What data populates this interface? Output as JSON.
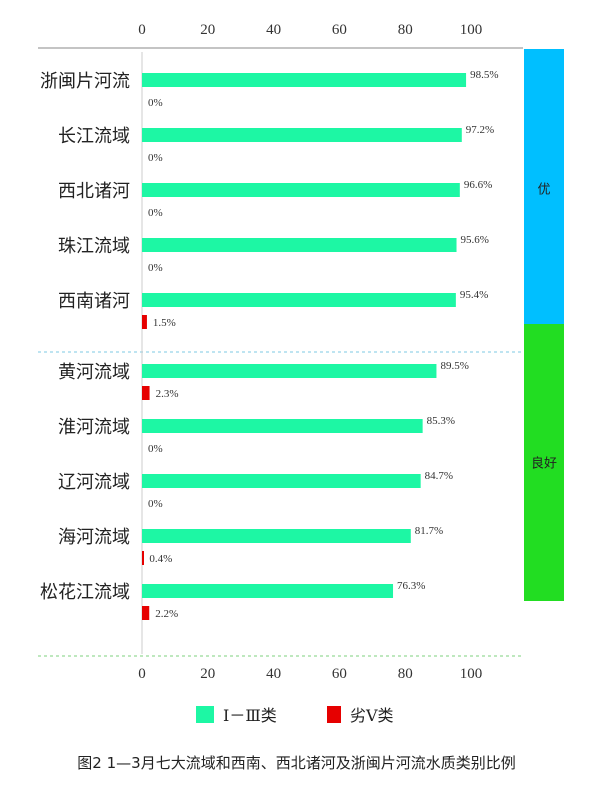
{
  "chart_data": {
    "type": "bar",
    "orientation": "horizontal",
    "categories": [
      "浙闽片河流",
      "长江流域",
      "西北诸河",
      "珠江流域",
      "西南诸河",
      "黄河流域",
      "淮河流域",
      "辽河流域",
      "海河流域",
      "松花江流域"
    ],
    "series": [
      {
        "name": "Ⅰ－Ⅲ类",
        "color": "#1DF7A4",
        "values": [
          98.5,
          97.2,
          96.6,
          95.6,
          95.4,
          89.5,
          85.3,
          84.7,
          81.7,
          76.3
        ],
        "labels": [
          "98.5%",
          "97.2%",
          "96.6%",
          "95.6%",
          "95.4%",
          "89.5%",
          "85.3%",
          "84.7%",
          "81.7%",
          "76.3%"
        ]
      },
      {
        "name": "劣Ⅴ类",
        "color": "#E60000",
        "values": [
          0,
          0,
          0,
          0,
          1.5,
          2.3,
          0,
          0,
          0.4,
          2.2
        ],
        "labels": [
          "0%",
          "0%",
          "0%",
          "0%",
          "1.5%",
          "2.3%",
          "0%",
          "0%",
          "0.4%",
          "2.2%"
        ]
      }
    ],
    "xlim": [
      0,
      100
    ],
    "xticks": [
      "0",
      "20",
      "40",
      "60",
      "80",
      "100"
    ],
    "groups": [
      {
        "label": "优",
        "color": "#00BFFF",
        "count": 5
      },
      {
        "label": "良好",
        "color": "#22DD22",
        "count": 5
      }
    ],
    "legend_position": "bottom"
  },
  "caption": "图2  1—3月七大流域和西南、西北诸河及浙闽片河流水质类别比例"
}
